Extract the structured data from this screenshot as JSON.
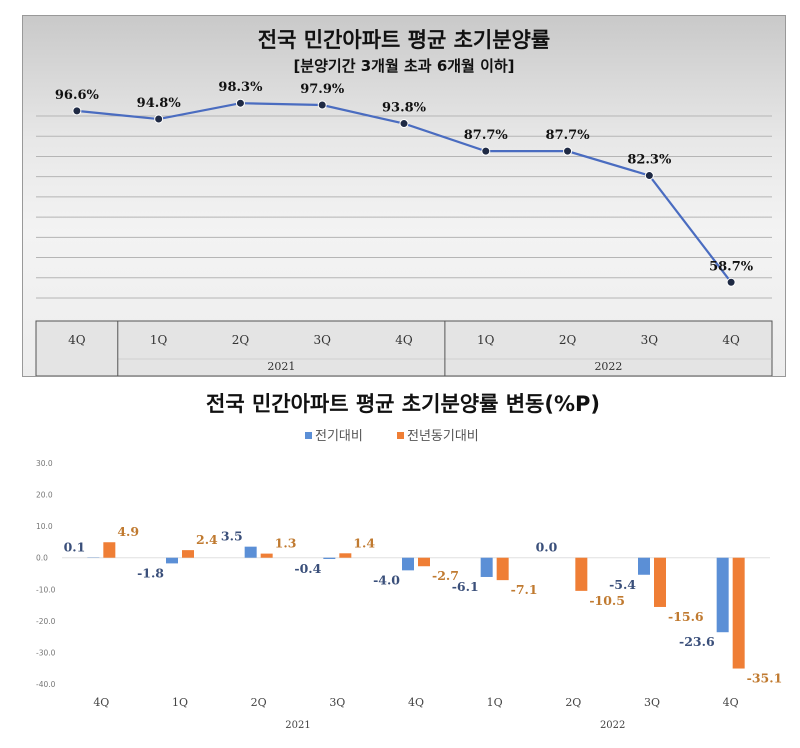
{
  "colors": {
    "line": "#4a6cc0",
    "marker": "#1f2a44",
    "qoq": "#5b8fd6",
    "yoy": "#ef7e35",
    "yoy_label": "#c07a30",
    "qoq_label": "#3a4f7a"
  },
  "chart_data": [
    {
      "type": "line",
      "title": "전국 민간아파트 평균 초기분양률",
      "subtitle": "[분양기간 3개월 초과 6개월 이하]",
      "categories": [
        "4Q",
        "1Q",
        "2Q",
        "3Q",
        "4Q",
        "1Q",
        "2Q",
        "3Q",
        "4Q"
      ],
      "year_groups": [
        {
          "label": "",
          "span": 1
        },
        {
          "label": "2021",
          "span": 4
        },
        {
          "label": "2022",
          "span": 4
        }
      ],
      "values": [
        96.6,
        94.8,
        98.3,
        97.9,
        93.8,
        87.7,
        87.7,
        82.3,
        58.7
      ],
      "value_labels": [
        "96.6%",
        "94.8%",
        "98.3%",
        "97.9%",
        "93.8%",
        "87.7%",
        "87.7%",
        "82.3%",
        "58.7%"
      ],
      "ylim": [
        55,
        101
      ],
      "grid": true,
      "legend": "none"
    },
    {
      "type": "bar",
      "title": "전국 민간아파트 평균 초기분양률 변동(%P)",
      "categories": [
        "4Q",
        "1Q",
        "2Q",
        "3Q",
        "4Q",
        "1Q",
        "2Q",
        "3Q",
        "4Q"
      ],
      "year_groups": [
        {
          "label": "",
          "span": 1
        },
        {
          "label": "2021",
          "span": 4
        },
        {
          "label": "2022",
          "span": 4
        }
      ],
      "series": [
        {
          "name": "전기대비",
          "values": [
            0.1,
            -1.8,
            3.5,
            -0.4,
            -4.0,
            -6.1,
            0.0,
            -5.4,
            -23.6
          ],
          "labels": [
            "0.1",
            "-1.8",
            "3.5",
            "-0.4",
            "-4.0",
            "-6.1",
            "0.0",
            "-5.4",
            "-23.6"
          ]
        },
        {
          "name": "전년동기대비",
          "values": [
            4.9,
            2.4,
            1.3,
            1.4,
            -2.7,
            -7.1,
            -10.5,
            -15.6,
            -35.1
          ],
          "labels": [
            "4.9",
            "2.4",
            "1.3",
            "1.4",
            "-2.7",
            "-7.1",
            "-10.5",
            "-15.6",
            "-35.1"
          ]
        }
      ],
      "y_ticks": [
        "30.0",
        "20.0",
        "10.0",
        "0.0",
        "-10.0",
        "-20.0",
        "-30.0",
        "-40.0"
      ],
      "ylim": [
        -40,
        30
      ],
      "grid": false,
      "legend": "top-center"
    }
  ]
}
